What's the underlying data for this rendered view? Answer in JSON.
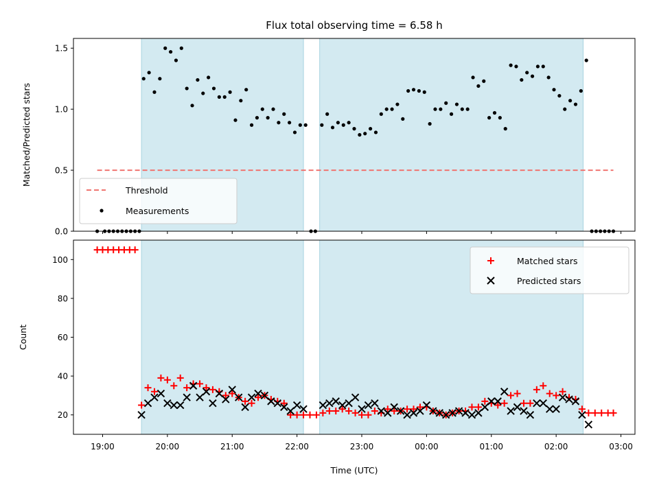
{
  "chart_data": [
    {
      "type": "scatter",
      "title": "Flux total observing time = 6.58 h",
      "xlabel": "",
      "ylabel": "Matched/Predicted stars",
      "xlim": [
        "18:33",
        "03:13"
      ],
      "ylim": [
        0,
        1.58
      ],
      "yticks": [
        0.0,
        0.5,
        1.0,
        1.5
      ],
      "ytick_labels": [
        "0.0",
        "0.5",
        "1.0",
        "1.5"
      ],
      "grid": false,
      "legend_position": "lower-left",
      "observing_windows": [
        [
          "19:36",
          "22:06"
        ],
        [
          "22:21",
          "02:25"
        ]
      ],
      "threshold": {
        "name": "Threshold",
        "value": 0.5,
        "x_range": [
          "18:55",
          "02:53"
        ],
        "color": "#f07470"
      },
      "series": [
        {
          "name": "Measurements",
          "color": "#000000",
          "points": [
            [
              "18:55",
              0
            ],
            [
              "19:02",
              0
            ],
            [
              "19:06",
              0
            ],
            [
              "19:10",
              0
            ],
            [
              "19:14",
              0
            ],
            [
              "19:18",
              0
            ],
            [
              "19:22",
              0
            ],
            [
              "19:26",
              0
            ],
            [
              "19:30",
              0
            ],
            [
              "19:34",
              0
            ],
            [
              "19:38",
              1.25
            ],
            [
              "19:43",
              1.3
            ],
            [
              "19:48",
              1.14
            ],
            [
              "19:53",
              1.25
            ],
            [
              "19:58",
              1.5
            ],
            [
              "20:03",
              1.47
            ],
            [
              "20:08",
              1.4
            ],
            [
              "20:13",
              1.5
            ],
            [
              "20:18",
              1.17
            ],
            [
              "20:23",
              1.03
            ],
            [
              "20:28",
              1.24
            ],
            [
              "20:33",
              1.13
            ],
            [
              "20:38",
              1.26
            ],
            [
              "20:43",
              1.17
            ],
            [
              "20:48",
              1.1
            ],
            [
              "20:53",
              1.1
            ],
            [
              "20:58",
              1.14
            ],
            [
              "21:03",
              0.91
            ],
            [
              "21:08",
              1.07
            ],
            [
              "21:13",
              1.16
            ],
            [
              "21:18",
              0.87
            ],
            [
              "21:23",
              0.93
            ],
            [
              "21:28",
              1.0
            ],
            [
              "21:33",
              0.93
            ],
            [
              "21:38",
              1.0
            ],
            [
              "21:43",
              0.89
            ],
            [
              "21:48",
              0.96
            ],
            [
              "21:53",
              0.89
            ],
            [
              "21:58",
              0.81
            ],
            [
              "22:03",
              0.87
            ],
            [
              "22:08",
              0.87
            ],
            [
              "22:13",
              0
            ],
            [
              "22:17",
              0
            ],
            [
              "22:23",
              0.87
            ],
            [
              "22:28",
              0.96
            ],
            [
              "22:33",
              0.85
            ],
            [
              "22:38",
              0.89
            ],
            [
              "22:43",
              0.87
            ],
            [
              "22:48",
              0.89
            ],
            [
              "22:53",
              0.84
            ],
            [
              "22:58",
              0.79
            ],
            [
              "23:03",
              0.8
            ],
            [
              "23:08",
              0.84
            ],
            [
              "23:13",
              0.81
            ],
            [
              "23:18",
              0.96
            ],
            [
              "23:23",
              1.0
            ],
            [
              "23:28",
              1.0
            ],
            [
              "23:33",
              1.04
            ],
            [
              "23:38",
              0.92
            ],
            [
              "23:43",
              1.15
            ],
            [
              "23:48",
              1.16
            ],
            [
              "23:53",
              1.15
            ],
            [
              "23:58",
              1.14
            ],
            [
              "00:03",
              0.88
            ],
            [
              "00:08",
              1.0
            ],
            [
              "00:13",
              1.0
            ],
            [
              "00:18",
              1.05
            ],
            [
              "00:23",
              0.96
            ],
            [
              "00:28",
              1.04
            ],
            [
              "00:33",
              1.0
            ],
            [
              "00:38",
              1.0
            ],
            [
              "00:43",
              1.26
            ],
            [
              "00:48",
              1.19
            ],
            [
              "00:53",
              1.23
            ],
            [
              "00:58",
              0.93
            ],
            [
              "01:03",
              0.97
            ],
            [
              "01:08",
              0.93
            ],
            [
              "01:13",
              0.84
            ],
            [
              "01:18",
              1.36
            ],
            [
              "01:23",
              1.35
            ],
            [
              "01:28",
              1.24
            ],
            [
              "01:33",
              1.3
            ],
            [
              "01:38",
              1.27
            ],
            [
              "01:43",
              1.35
            ],
            [
              "01:48",
              1.35
            ],
            [
              "01:53",
              1.26
            ],
            [
              "01:58",
              1.16
            ],
            [
              "02:03",
              1.11
            ],
            [
              "02:08",
              1.0
            ],
            [
              "02:13",
              1.07
            ],
            [
              "02:18",
              1.04
            ],
            [
              "02:23",
              1.15
            ],
            [
              "02:28",
              1.4
            ],
            [
              "02:33",
              0
            ],
            [
              "02:37",
              0
            ],
            [
              "02:41",
              0
            ],
            [
              "02:45",
              0
            ],
            [
              "02:49",
              0
            ],
            [
              "02:53",
              0
            ]
          ]
        }
      ]
    },
    {
      "type": "scatter",
      "title": "",
      "xlabel": "Time (UTC)",
      "ylabel": "Count",
      "xlim": [
        "18:33",
        "03:13"
      ],
      "ylim": [
        10,
        110
      ],
      "yticks": [
        20,
        40,
        60,
        80,
        100
      ],
      "ytick_labels": [
        "20",
        "40",
        "60",
        "80",
        "100"
      ],
      "xticks": [
        "19:00",
        "20:00",
        "21:00",
        "22:00",
        "23:00",
        "00:00",
        "01:00",
        "02:00",
        "03:00"
      ],
      "grid": false,
      "legend_position": "upper-right",
      "observing_windows": [
        [
          "19:36",
          "22:06"
        ],
        [
          "22:21",
          "02:25"
        ]
      ],
      "series": [
        {
          "name": "Matched stars",
          "marker": "+",
          "color": "#ff0000",
          "points": [
            [
              "18:55",
              105
            ],
            [
              "19:00",
              105
            ],
            [
              "19:05",
              105
            ],
            [
              "19:10",
              105
            ],
            [
              "19:15",
              105
            ],
            [
              "19:20",
              105
            ],
            [
              "19:25",
              105
            ],
            [
              "19:30",
              105
            ],
            [
              "19:36",
              25
            ],
            [
              "19:42",
              34
            ],
            [
              "19:48",
              32
            ],
            [
              "19:54",
              39
            ],
            [
              "20:00",
              38
            ],
            [
              "20:06",
              35
            ],
            [
              "20:12",
              39
            ],
            [
              "20:18",
              34
            ],
            [
              "20:24",
              36
            ],
            [
              "20:30",
              36
            ],
            [
              "20:36",
              34
            ],
            [
              "20:42",
              33
            ],
            [
              "20:48",
              32
            ],
            [
              "20:54",
              30
            ],
            [
              "21:00",
              31
            ],
            [
              "21:06",
              29
            ],
            [
              "21:12",
              27
            ],
            [
              "21:18",
              26
            ],
            [
              "21:24",
              29
            ],
            [
              "21:30",
              30
            ],
            [
              "21:36",
              28
            ],
            [
              "21:42",
              27
            ],
            [
              "21:48",
              26
            ],
            [
              "21:54",
              20
            ],
            [
              "22:00",
              20
            ],
            [
              "22:06",
              20
            ],
            [
              "22:12",
              20
            ],
            [
              "22:18",
              20
            ],
            [
              "22:24",
              21
            ],
            [
              "22:30",
              22
            ],
            [
              "22:36",
              22
            ],
            [
              "22:42",
              23
            ],
            [
              "22:48",
              22
            ],
            [
              "22:54",
              21
            ],
            [
              "23:00",
              20
            ],
            [
              "23:06",
              20
            ],
            [
              "23:12",
              22
            ],
            [
              "23:18",
              21
            ],
            [
              "23:24",
              23
            ],
            [
              "23:30",
              22
            ],
            [
              "23:36",
              22
            ],
            [
              "23:42",
              23
            ],
            [
              "23:48",
              23
            ],
            [
              "23:54",
              24
            ],
            [
              "00:00",
              24
            ],
            [
              "00:06",
              22
            ],
            [
              "00:12",
              21
            ],
            [
              "00:18",
              20
            ],
            [
              "00:24",
              21
            ],
            [
              "00:30",
              22
            ],
            [
              "00:36",
              22
            ],
            [
              "00:42",
              24
            ],
            [
              "00:48",
              24
            ],
            [
              "00:54",
              27
            ],
            [
              "01:00",
              26
            ],
            [
              "01:06",
              25
            ],
            [
              "01:12",
              26
            ],
            [
              "01:18",
              30
            ],
            [
              "01:24",
              31
            ],
            [
              "01:30",
              26
            ],
            [
              "01:36",
              26
            ],
            [
              "01:42",
              33
            ],
            [
              "01:48",
              35
            ],
            [
              "01:54",
              31
            ],
            [
              "02:00",
              30
            ],
            [
              "02:06",
              32
            ],
            [
              "02:12",
              29
            ],
            [
              "02:18",
              28
            ],
            [
              "02:24",
              23
            ],
            [
              "02:30",
              21
            ],
            [
              "02:36",
              21
            ],
            [
              "02:42",
              21
            ],
            [
              "02:48",
              21
            ],
            [
              "02:53",
              21
            ]
          ]
        },
        {
          "name": "Predicted stars",
          "marker": "x",
          "color": "#000000",
          "points": [
            [
              "19:36",
              20
            ],
            [
              "19:42",
              26
            ],
            [
              "19:48",
              29
            ],
            [
              "19:54",
              31
            ],
            [
              "20:00",
              26
            ],
            [
              "20:06",
              25
            ],
            [
              "20:12",
              25
            ],
            [
              "20:18",
              29
            ],
            [
              "20:24",
              35
            ],
            [
              "20:30",
              29
            ],
            [
              "20:36",
              32
            ],
            [
              "20:42",
              26
            ],
            [
              "20:48",
              31
            ],
            [
              "20:54",
              28
            ],
            [
              "21:00",
              33
            ],
            [
              "21:06",
              29
            ],
            [
              "21:12",
              24
            ],
            [
              "21:18",
              29
            ],
            [
              "21:24",
              31
            ],
            [
              "21:30",
              30
            ],
            [
              "21:36",
              27
            ],
            [
              "21:42",
              26
            ],
            [
              "21:48",
              24
            ],
            [
              "21:54",
              22
            ],
            [
              "22:00",
              25
            ],
            [
              "22:06",
              23
            ],
            [
              "22:24",
              25
            ],
            [
              "22:30",
              26
            ],
            [
              "22:36",
              27
            ],
            [
              "22:42",
              25
            ],
            [
              "22:48",
              26
            ],
            [
              "22:54",
              29
            ],
            [
              "23:00",
              23
            ],
            [
              "23:06",
              25
            ],
            [
              "23:12",
              26
            ],
            [
              "23:18",
              22
            ],
            [
              "23:24",
              21
            ],
            [
              "23:30",
              24
            ],
            [
              "23:36",
              22
            ],
            [
              "23:42",
              20
            ],
            [
              "23:48",
              21
            ],
            [
              "23:54",
              22
            ],
            [
              "00:00",
              25
            ],
            [
              "00:06",
              22
            ],
            [
              "00:12",
              21
            ],
            [
              "00:18",
              20
            ],
            [
              "00:24",
              21
            ],
            [
              "00:30",
              22
            ],
            [
              "00:36",
              21
            ],
            [
              "00:42",
              20
            ],
            [
              "00:48",
              21
            ],
            [
              "00:54",
              24
            ],
            [
              "01:00",
              27
            ],
            [
              "01:06",
              27
            ],
            [
              "01:12",
              32
            ],
            [
              "01:18",
              22
            ],
            [
              "01:24",
              24
            ],
            [
              "01:30",
              22
            ],
            [
              "01:36",
              20
            ],
            [
              "01:42",
              26
            ],
            [
              "01:48",
              26
            ],
            [
              "01:54",
              23
            ],
            [
              "02:00",
              23
            ],
            [
              "02:06",
              29
            ],
            [
              "02:12",
              28
            ],
            [
              "02:18",
              27
            ],
            [
              "02:24",
              20
            ],
            [
              "02:30",
              15
            ]
          ]
        }
      ]
    }
  ]
}
